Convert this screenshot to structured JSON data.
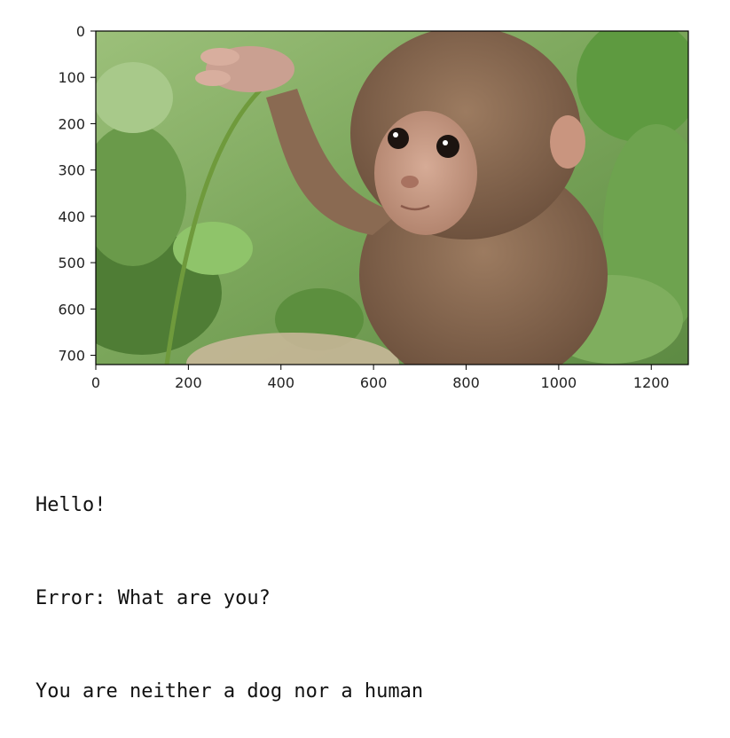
{
  "figure": {
    "image_subject": "baby monkey holding grass stem",
    "colors": {
      "sky_green": "#7fa860",
      "leaf_dark": "#3f6b2a",
      "leaf_light": "#8fc46a",
      "fur": "#8a6a52",
      "fur_dark": "#5e4634",
      "face": "#c79a85",
      "frame": "#000000"
    }
  },
  "chart_data": {
    "type": "image",
    "xlim": [
      0,
      1280
    ],
    "ylim": [
      720,
      0
    ],
    "xticks": [
      0,
      200,
      400,
      600,
      800,
      1000,
      1200
    ],
    "yticks": [
      0,
      100,
      200,
      300,
      400,
      500,
      600,
      700
    ],
    "xtick_labels": [
      "0",
      "200",
      "400",
      "600",
      "800",
      "1000",
      "1200"
    ],
    "ytick_labels": [
      "0",
      "100",
      "200",
      "300",
      "400",
      "500",
      "600",
      "700"
    ]
  },
  "output": {
    "lines": [
      "Hello!",
      "Error: What are you?",
      "You are neither a dog nor a human"
    ]
  }
}
